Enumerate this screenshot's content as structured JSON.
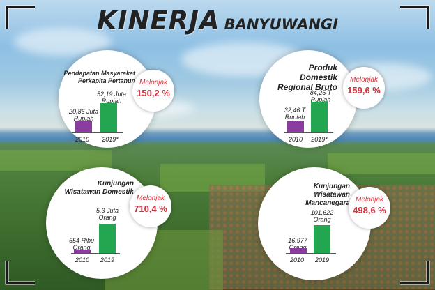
{
  "header": {
    "title_main": "KINERJA",
    "title_sub": "BANYUWANGI"
  },
  "colors": {
    "bar_old": "#8a3d9e",
    "bar_new": "#22a650",
    "increase_text": "#d82e3c"
  },
  "panels": [
    {
      "title_lines": [
        "Pendapatan Masyarakat",
        "Perkapita Pertahun"
      ],
      "badge": {
        "label": "Melonjak",
        "value": "150,2 %"
      },
      "bars": [
        {
          "year": "2010",
          "value_lines": [
            "20,86 Juta",
            "Rupiah"
          ],
          "value": 20.86
        },
        {
          "year": "2019*",
          "value_lines": [
            "52,19 Juta",
            "Rupiah"
          ],
          "value": 52.19
        }
      ]
    },
    {
      "title_lines": [
        "Produk Domestik",
        "Regional Bruto"
      ],
      "badge": {
        "label": "Melonjak",
        "value": "159,6 %"
      },
      "bars": [
        {
          "year": "2010",
          "value_lines": [
            "32,46 T",
            "Rupiah"
          ],
          "value": 32.46
        },
        {
          "year": "2019*",
          "value_lines": [
            "84,25 T",
            "Rupiah"
          ],
          "value": 84.25
        }
      ]
    },
    {
      "title_lines": [
        "Kunjungan",
        "Wisatawan Domestik"
      ],
      "badge": {
        "label": "Melonjak",
        "value": "710,4 %"
      },
      "bars": [
        {
          "year": "2010",
          "value_lines": [
            "654 Ribu",
            "Orang"
          ],
          "value": 0.654
        },
        {
          "year": "2019",
          "value_lines": [
            "5,3 Juta",
            "Orang"
          ],
          "value": 5.3
        }
      ]
    },
    {
      "title_lines": [
        "Kunjungan",
        "Wisatawan Mancanegara"
      ],
      "badge": {
        "label": "Melonjak",
        "value": "498,6 %"
      },
      "bars": [
        {
          "year": "2010",
          "value_lines": [
            "16.977",
            "Orang"
          ],
          "value": 16977
        },
        {
          "year": "2019",
          "value_lines": [
            "101.622",
            "Orang"
          ],
          "value": 101622
        }
      ]
    }
  ]
}
